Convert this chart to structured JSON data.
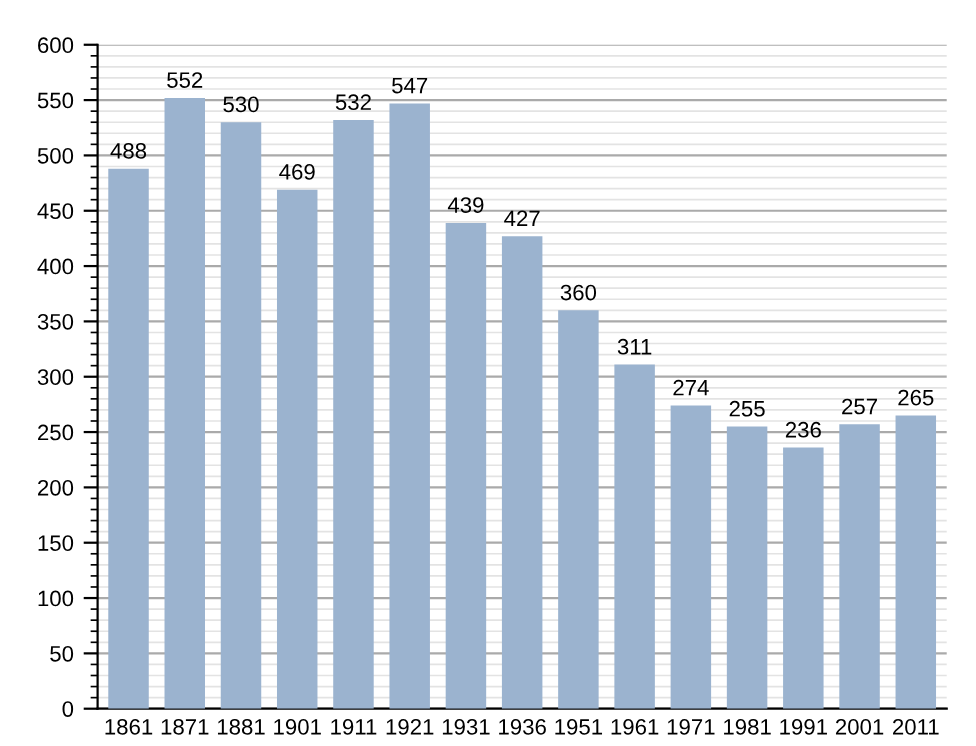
{
  "chart_data": {
    "type": "bar",
    "categories": [
      "1861",
      "1871",
      "1881",
      "1901",
      "1911",
      "1921",
      "1931",
      "1936",
      "1951",
      "1961",
      "1971",
      "1981",
      "1991",
      "2001",
      "2011"
    ],
    "values": [
      488,
      552,
      530,
      469,
      532,
      547,
      439,
      427,
      360,
      311,
      274,
      255,
      236,
      257,
      265
    ],
    "color": "#9bb3cf",
    "data_labels": true,
    "grid": "y",
    "ylim": [
      0,
      600
    ],
    "yticks": [
      0,
      50,
      100,
      150,
      200,
      250,
      300,
      350,
      400,
      450,
      500,
      550,
      600
    ]
  }
}
